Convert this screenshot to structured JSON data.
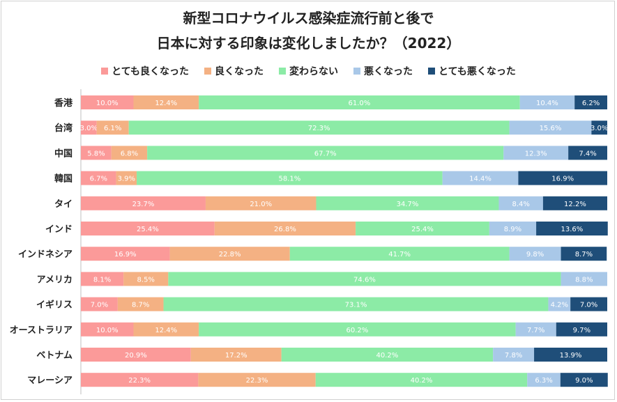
{
  "chart_data": {
    "type": "bar",
    "orientation": "horizontal",
    "stacked": true,
    "percent": true,
    "title_line1": "新型コロナウイルス感染症流行前と後で",
    "title_line2": "日本に対する印象は変化しましたか？（2022）",
    "xlim": [
      0,
      100
    ],
    "legend_position": "top",
    "categories": [
      "香港",
      "台湾",
      "中国",
      "韓国",
      "タイ",
      "インド",
      "インドネシア",
      "アメリカ",
      "イギリス",
      "オーストラリア",
      "ベトナム",
      "マレーシア"
    ],
    "series": [
      {
        "name": "とても良くなった",
        "color": "#fb9a99",
        "label_color": "#ffffff",
        "values": [
          10.0,
          3.0,
          5.8,
          6.7,
          23.7,
          25.4,
          16.9,
          8.1,
          7.0,
          10.0,
          20.9,
          22.3
        ]
      },
      {
        "name": "良くなった",
        "color": "#f4b183",
        "label_color": "#ffffff",
        "values": [
          12.4,
          6.1,
          6.8,
          3.9,
          21.0,
          26.8,
          22.8,
          8.5,
          8.7,
          12.4,
          17.2,
          22.3
        ]
      },
      {
        "name": "変わらない",
        "color": "#8ceba6",
        "label_color": "#ffffff",
        "values": [
          61.0,
          72.3,
          67.7,
          58.1,
          34.7,
          25.4,
          41.7,
          74.6,
          73.1,
          60.2,
          40.2,
          40.2
        ]
      },
      {
        "name": "悪くなった",
        "color": "#a9c8e8",
        "label_color": "#ffffff",
        "values": [
          10.4,
          15.6,
          12.3,
          14.4,
          8.4,
          8.9,
          9.8,
          8.8,
          4.2,
          7.7,
          7.8,
          6.3
        ]
      },
      {
        "name": "とても悪くなった",
        "color": "#1f4e79",
        "label_color": "#ffffff",
        "values": [
          6.2,
          3.0,
          7.4,
          16.9,
          12.2,
          13.6,
          8.7,
          0.0,
          7.0,
          9.7,
          13.9,
          9.0
        ]
      }
    ]
  }
}
